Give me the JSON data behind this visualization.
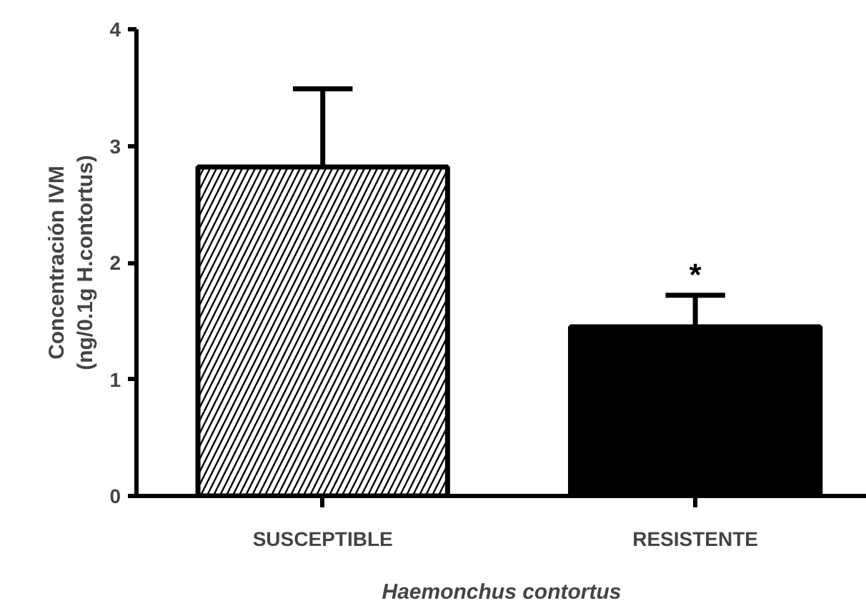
{
  "chart_data": {
    "type": "bar",
    "xlabel": "Haemonchus contortus",
    "ylabel": "Concentración IVM\n(ng/0.1g H.contortus)",
    "categories": [
      "SUSCEPTIBLE",
      "RESISTENTE"
    ],
    "values": [
      2.82,
      1.45
    ],
    "colors": [
      "#ffffff",
      "#000000"
    ],
    "errors": [
      [
        2.82,
        3.49
      ],
      [
        1.45,
        1.72
      ]
    ],
    "ylim": [
      0,
      4
    ],
    "yticks": [
      0,
      1,
      2,
      3,
      4
    ],
    "annotations": [
      "*"
    ],
    "grid": false
  }
}
